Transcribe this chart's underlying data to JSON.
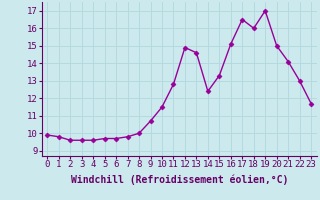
{
  "x": [
    0,
    1,
    2,
    3,
    4,
    5,
    6,
    7,
    8,
    9,
    10,
    11,
    12,
    13,
    14,
    15,
    16,
    17,
    18,
    19,
    20,
    21,
    22,
    23
  ],
  "y": [
    9.9,
    9.8,
    9.6,
    9.6,
    9.6,
    9.7,
    9.7,
    9.8,
    10.0,
    10.7,
    11.5,
    12.8,
    14.9,
    14.6,
    12.4,
    13.3,
    15.1,
    16.5,
    16.0,
    17.0,
    15.0,
    14.1,
    13.0,
    11.7
  ],
  "line_color": "#990099",
  "marker": "D",
  "markersize": 2.5,
  "linewidth": 1.0,
  "xlabel": "Windchill (Refroidissement éolien,°C)",
  "ylabel_ticks": [
    9,
    10,
    11,
    12,
    13,
    14,
    15,
    16,
    17
  ],
  "ylim": [
    8.7,
    17.5
  ],
  "xlim": [
    -0.5,
    23.5
  ],
  "bg_color": "#cce9ed",
  "grid_color": "#b0d8de",
  "xlabel_fontsize": 7,
  "tick_fontsize": 6.5
}
